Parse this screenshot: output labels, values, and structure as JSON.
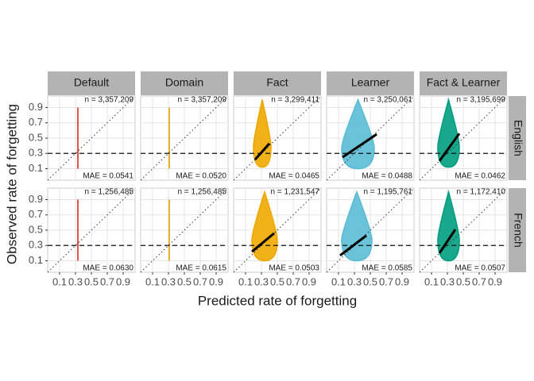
{
  "chart_data": {
    "type": "facet-scatter",
    "x_label": "Predicted rate of forgetting",
    "y_label": "Observed rate of forgetting",
    "xlim": [
      -0.05,
      1.05
    ],
    "ylim": [
      -0.05,
      1.05
    ],
    "xticks": [
      0.1,
      0.3,
      0.5,
      0.7,
      0.9
    ],
    "yticks": [
      0.1,
      0.3,
      0.5,
      0.7,
      0.9
    ],
    "hline": 0.3,
    "columns": [
      "Default",
      "Domain",
      "Fact",
      "Learner",
      "Fact & Learner"
    ],
    "colors": [
      "#d7261e",
      "#e69f00",
      "#f0a800",
      "#5bbcd6",
      "#009e80"
    ],
    "rows": [
      "English",
      "French"
    ],
    "panels": [
      [
        {
          "n": "n = 3,357,209",
          "mae": "MAE = 0.0541",
          "cloud_x": [
            0.33,
            0.33
          ],
          "cloud_y": [
            0.1,
            0.9
          ]
        },
        {
          "n": "n = 3,357,209",
          "mae": "MAE = 0.0520",
          "cloud_x": [
            0.31,
            0.31
          ],
          "cloud_y": [
            0.1,
            0.9
          ]
        },
        {
          "n": "n = 3,299,411",
          "mae": "MAE = 0.0465",
          "cloud_x": [
            0.2,
            0.42
          ],
          "cloud_y": [
            0.12,
            1.0
          ],
          "fit_x": [
            0.22,
            0.4
          ],
          "fit_y": [
            0.22,
            0.43
          ]
        },
        {
          "n": "n = 3,250,061",
          "mae": "MAE = 0.0488",
          "cloud_x": [
            0.14,
            0.55
          ],
          "cloud_y": [
            0.1,
            1.0
          ],
          "fit_x": [
            0.15,
            0.58
          ],
          "fit_y": [
            0.25,
            0.55
          ]
        },
        {
          "n": "n = 3,195,699",
          "mae": "MAE = 0.0462",
          "cloud_x": [
            0.18,
            0.45
          ],
          "cloud_y": [
            0.12,
            1.0
          ],
          "fit_x": [
            0.2,
            0.45
          ],
          "fit_y": [
            0.2,
            0.56
          ]
        }
      ],
      [
        {
          "n": "n = 1,256,485",
          "mae": "MAE = 0.0630",
          "cloud_x": [
            0.33,
            0.33
          ],
          "cloud_y": [
            0.1,
            0.9
          ]
        },
        {
          "n": "n = 1,256,485",
          "mae": "MAE = 0.0615",
          "cloud_x": [
            0.31,
            0.31
          ],
          "cloud_y": [
            0.1,
            0.9
          ]
        },
        {
          "n": "n = 1,231,547",
          "mae": "MAE = 0.0503",
          "cloud_x": [
            0.18,
            0.5
          ],
          "cloud_y": [
            0.1,
            1.0
          ],
          "fit_x": [
            0.18,
            0.46
          ],
          "fit_y": [
            0.22,
            0.46
          ]
        },
        {
          "n": "n = 1,195,761",
          "mae": "MAE = 0.0585",
          "cloud_x": [
            0.14,
            0.52
          ],
          "cloud_y": [
            0.1,
            1.0
          ],
          "fit_x": [
            0.12,
            0.45
          ],
          "fit_y": [
            0.17,
            0.43
          ]
        },
        {
          "n": "n = 1,172,410",
          "mae": "MAE = 0.0507",
          "cloud_x": [
            0.18,
            0.45
          ],
          "cloud_y": [
            0.1,
            1.0
          ],
          "fit_x": [
            0.2,
            0.4
          ],
          "fit_y": [
            0.2,
            0.51
          ]
        }
      ]
    ]
  }
}
